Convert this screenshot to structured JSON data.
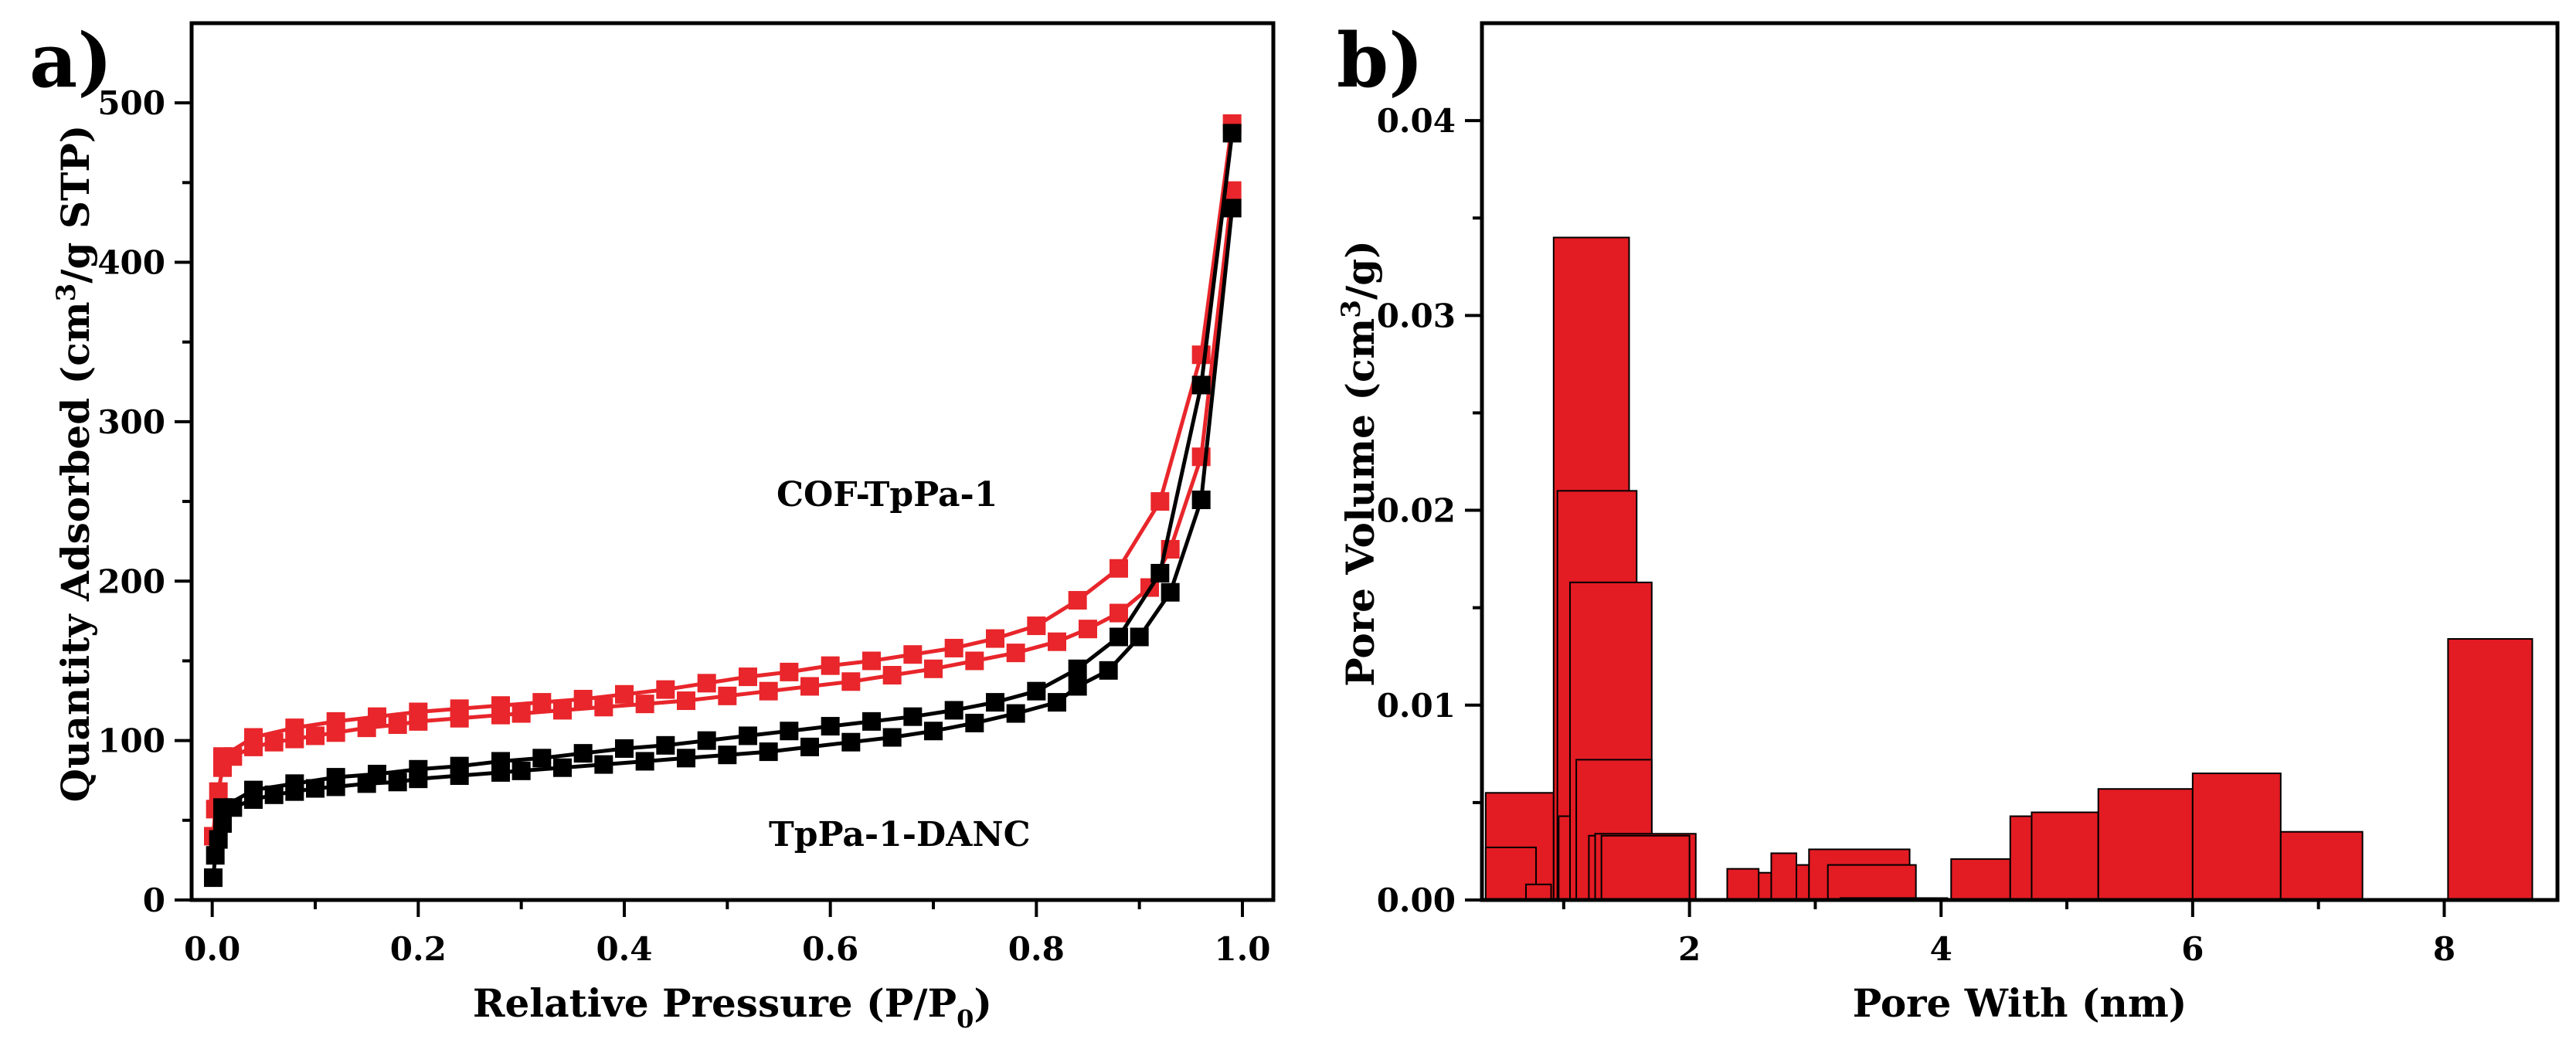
{
  "chart_data": [
    {
      "panel": "a)",
      "type": "line",
      "xlabel": "Relative Pressure (P/P",
      "xlabel_subscript": "0",
      "xlabel_end": ")",
      "ylabel": "Quantity Adsorbed (cm",
      "ylabel_superscript": "3",
      "ylabel_end": "/g STP)",
      "xlim": [
        -0.02,
        1.03
      ],
      "ylim": [
        0,
        550
      ],
      "xticks": [
        "0.0",
        "0.2",
        "0.4",
        "0.6",
        "0.8",
        "1.0"
      ],
      "yticks": [
        "0",
        "100",
        "200",
        "300",
        "400",
        "500"
      ],
      "annotations": [
        {
          "text": "COF-TpPa-1",
          "color": "#e8262b"
        },
        {
          "text": "TpPa-1-DANC",
          "color": "#000000"
        }
      ],
      "series": [
        {
          "name": "COF-TpPa-1 adsorption",
          "color": "#e8262b",
          "x": [
            0.001,
            0.003,
            0.006,
            0.01,
            0.02,
            0.04,
            0.06,
            0.08,
            0.1,
            0.12,
            0.15,
            0.18,
            0.2,
            0.24,
            0.28,
            0.3,
            0.34,
            0.38,
            0.42,
            0.46,
            0.5,
            0.54,
            0.58,
            0.62,
            0.66,
            0.7,
            0.74,
            0.78,
            0.82,
            0.85,
            0.88,
            0.91,
            0.93,
            0.96,
            0.99
          ],
          "y": [
            40,
            57,
            68,
            83,
            90,
            96,
            99,
            101,
            103,
            105,
            108,
            110,
            112,
            114,
            116,
            117,
            119,
            121,
            123,
            125,
            128,
            131,
            134,
            137,
            141,
            145,
            150,
            155,
            162,
            170,
            180,
            196,
            220,
            278,
            445
          ]
        },
        {
          "name": "COF-TpPa-1 desorption",
          "color": "#e8262b",
          "x": [
            0.99,
            0.96,
            0.92,
            0.88,
            0.84,
            0.8,
            0.76,
            0.72,
            0.68,
            0.64,
            0.6,
            0.56,
            0.52,
            0.48,
            0.44,
            0.4,
            0.36,
            0.32,
            0.28,
            0.24,
            0.2,
            0.16,
            0.12,
            0.08,
            0.04,
            0.01
          ],
          "y": [
            487,
            342,
            250,
            208,
            188,
            172,
            164,
            158,
            154,
            150,
            147,
            143,
            140,
            136,
            132,
            129,
            126,
            124,
            122,
            120,
            118,
            115,
            112,
            108,
            102,
            90
          ]
        },
        {
          "name": "TpPa-1-DANC adsorption",
          "color": "#000000",
          "x": [
            0.001,
            0.003,
            0.006,
            0.01,
            0.02,
            0.04,
            0.06,
            0.08,
            0.1,
            0.12,
            0.15,
            0.18,
            0.2,
            0.24,
            0.28,
            0.3,
            0.34,
            0.38,
            0.42,
            0.46,
            0.5,
            0.54,
            0.58,
            0.62,
            0.66,
            0.7,
            0.74,
            0.78,
            0.82,
            0.84,
            0.87,
            0.9,
            0.93,
            0.96,
            0.99
          ],
          "y": [
            14,
            28,
            38,
            48,
            58,
            63,
            66,
            68,
            70,
            71,
            73,
            74,
            76,
            78,
            80,
            81,
            83,
            85,
            87,
            89,
            91,
            93,
            96,
            99,
            102,
            106,
            111,
            117,
            124,
            134,
            144,
            165,
            193,
            251,
            434
          ]
        },
        {
          "name": "TpPa-1-DANC desorption",
          "color": "#000000",
          "x": [
            0.99,
            0.96,
            0.92,
            0.88,
            0.84,
            0.8,
            0.76,
            0.72,
            0.68,
            0.64,
            0.6,
            0.56,
            0.52,
            0.48,
            0.44,
            0.4,
            0.36,
            0.32,
            0.28,
            0.24,
            0.2,
            0.16,
            0.12,
            0.08,
            0.04,
            0.01
          ],
          "y": [
            481,
            323,
            205,
            165,
            145,
            131,
            124,
            119,
            115,
            112,
            109,
            106,
            103,
            100,
            97,
            95,
            92,
            89,
            87,
            84,
            82,
            79,
            77,
            73,
            69,
            58
          ]
        }
      ]
    },
    {
      "panel": "b)",
      "type": "bar",
      "xlabel": "Pore With (nm)",
      "ylabel": "Pore Volume (cm",
      "ylabel_superscript": "3",
      "ylabel_end": "/g)",
      "xlim": [
        0.35,
        8.9
      ],
      "ylim": [
        0,
        0.045
      ],
      "xticks": [
        "2",
        "4",
        "6",
        "8"
      ],
      "yticks": [
        "0.00",
        "0.01",
        "0.02",
        "0.03",
        "0.04"
      ],
      "bar_color": "#e31b23",
      "bars": [
        {
          "x0": 0.38,
          "x1": 0.92,
          "value": 0.0055
        },
        {
          "x0": 0.38,
          "x1": 0.78,
          "value": 0.0027
        },
        {
          "x0": 0.7,
          "x1": 0.9,
          "value": 0.0008
        },
        {
          "x0": 0.92,
          "x1": 1.52,
          "value": 0.034
        },
        {
          "x0": 0.95,
          "x1": 1.58,
          "value": 0.021
        },
        {
          "x0": 0.96,
          "x1": 1.1,
          "value": 0.0043
        },
        {
          "x0": 1.05,
          "x1": 1.7,
          "value": 0.0163
        },
        {
          "x0": 1.1,
          "x1": 1.7,
          "value": 0.0072
        },
        {
          "x0": 1.2,
          "x1": 1.25,
          "value": 0.0033
        },
        {
          "x0": 1.25,
          "x1": 2.05,
          "value": 0.0034
        },
        {
          "x0": 1.3,
          "x1": 2.0,
          "value": 0.0033
        },
        {
          "x0": 2.3,
          "x1": 2.55,
          "value": 0.0016
        },
        {
          "x0": 2.55,
          "x1": 2.65,
          "value": 0.0014
        },
        {
          "x0": 2.65,
          "x1": 2.85,
          "value": 0.0024
        },
        {
          "x0": 2.85,
          "x1": 2.95,
          "value": 0.0018
        },
        {
          "x0": 2.95,
          "x1": 3.75,
          "value": 0.0026
        },
        {
          "x0": 3.1,
          "x1": 3.8,
          "value": 0.0018
        },
        {
          "x0": 3.2,
          "x1": 3.8,
          "value": 0.0001
        },
        {
          "x0": 3.8,
          "x1": 4.05,
          "value": 0.0001
        },
        {
          "x0": 4.08,
          "x1": 4.55,
          "value": 0.0021
        },
        {
          "x0": 4.55,
          "x1": 4.72,
          "value": 0.0043
        },
        {
          "x0": 4.72,
          "x1": 5.25,
          "value": 0.0045
        },
        {
          "x0": 5.25,
          "x1": 6.0,
          "value": 0.0057
        },
        {
          "x0": 6.0,
          "x1": 6.7,
          "value": 0.0065
        },
        {
          "x0": 6.7,
          "x1": 7.35,
          "value": 0.0035
        },
        {
          "x0": 8.03,
          "x1": 8.7,
          "value": 0.0134
        }
      ]
    }
  ]
}
